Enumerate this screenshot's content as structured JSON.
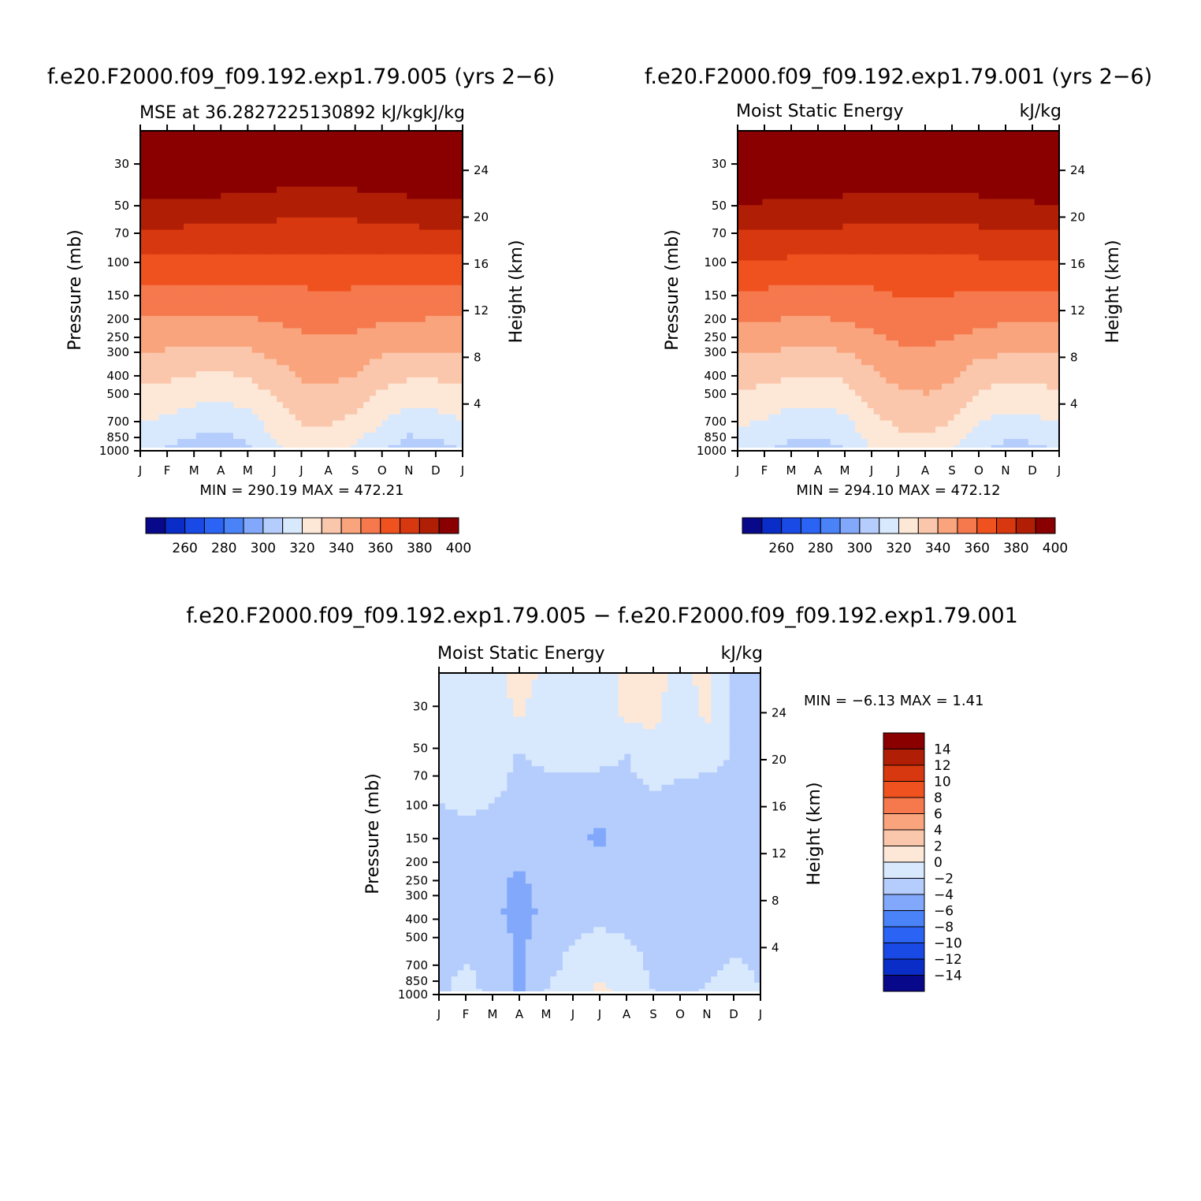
{
  "chart_data": [
    {
      "type": "contour",
      "title": "f.e20.F2000.f09_f09.192.exp1.79.005 (yrs 2−6)",
      "subtitle_left": "MSE at 36.2827225130892 kJ/kg",
      "subtitle_right": "kJ/kg",
      "xlabel": "",
      "ylabel": "Pressure (mb)",
      "ylabel_right": "Height (km)",
      "stats": "MIN = 290.19 MAX = 472.21",
      "months": [
        "J",
        "F",
        "M",
        "A",
        "M",
        "J",
        "J",
        "A",
        "S",
        "O",
        "N",
        "D",
        "J"
      ],
      "pressure_ticks": [
        30,
        50,
        70,
        100,
        150,
        200,
        250,
        300,
        400,
        500,
        700,
        850,
        1000
      ],
      "height_ticks": [
        24,
        20,
        16,
        12,
        8,
        4
      ],
      "colorbar_labels": [
        260,
        280,
        300,
        320,
        340,
        360,
        380,
        400
      ],
      "cmap": [
        "#08088a",
        "#0a2dc8",
        "#1a4ae6",
        "#2b64f5",
        "#4a82f8",
        "#82a8fb",
        "#b5cdfc",
        "#d8e8fd",
        "#fde8d8",
        "#fbc7ac",
        "#f9a47d",
        "#f6794e",
        "#f0521f",
        "#d8380f",
        "#b01f05",
        "#8a0000"
      ],
      "field": [
        [
          312,
          309,
          305,
          303,
          307,
          318,
          323,
          324,
          318,
          311,
          304,
          306,
          310
        ],
        [
          324,
          321,
          318,
          317,
          319,
          327,
          333,
          334,
          331,
          323,
          319,
          320,
          323
        ],
        [
          334,
          333,
          331,
          330,
          332,
          337,
          342,
          343,
          341,
          335,
          333,
          333,
          334
        ],
        [
          346,
          346,
          345,
          345,
          346,
          348,
          350,
          351,
          350,
          348,
          347,
          346,
          346
        ],
        [
          358,
          358,
          357,
          357,
          357,
          358,
          359,
          360,
          359,
          358,
          358,
          358,
          358
        ],
        [
          372,
          372,
          371,
          371,
          371,
          370,
          370,
          370,
          370,
          371,
          371,
          372,
          372
        ],
        [
          386,
          386,
          385,
          385,
          384,
          383,
          382,
          382,
          383,
          384,
          385,
          386,
          386
        ],
        [
          400,
          399,
          398,
          398,
          397,
          396,
          395,
          395,
          396,
          397,
          398,
          399,
          400
        ],
        [
          430,
          430,
          430,
          430,
          430,
          430,
          430,
          430,
          430,
          430,
          430,
          430,
          430
        ]
      ]
    },
    {
      "type": "contour",
      "title": "f.e20.F2000.f09_f09.192.exp1.79.001 (yrs 2−6)",
      "subtitle_left": "Moist Static Energy",
      "subtitle_right": "kJ/kg",
      "xlabel": "",
      "ylabel": "Pressure (mb)",
      "ylabel_right": "Height (km)",
      "stats": "MIN = 294.10 MAX = 472.12",
      "months": [
        "J",
        "F",
        "M",
        "A",
        "M",
        "J",
        "J",
        "A",
        "S",
        "O",
        "N",
        "D",
        "J"
      ],
      "pressure_ticks": [
        30,
        50,
        70,
        100,
        150,
        200,
        250,
        300,
        400,
        500,
        700,
        850,
        1000
      ],
      "height_ticks": [
        24,
        20,
        16,
        12,
        8,
        4
      ],
      "colorbar_labels": [
        260,
        280,
        300,
        320,
        340,
        360,
        380,
        400
      ],
      "cmap": [
        "#08088a",
        "#0a2dc8",
        "#1a4ae6",
        "#2b64f5",
        "#4a82f8",
        "#82a8fb",
        "#b5cdfc",
        "#d8e8fd",
        "#fde8d8",
        "#fbc7ac",
        "#f9a47d",
        "#f6794e",
        "#f0521f",
        "#d8380f",
        "#b01f05",
        "#8a0000"
      ],
      "field": [
        [
          313,
          310,
          307,
          305,
          309,
          320,
          325,
          326,
          320,
          312,
          306,
          307,
          311
        ],
        [
          325,
          322,
          319,
          318,
          321,
          329,
          335,
          336,
          333,
          324,
          320,
          321,
          324
        ],
        [
          335,
          334,
          332,
          331,
          333,
          339,
          344,
          345,
          342,
          336,
          334,
          334,
          335
        ],
        [
          347,
          347,
          346,
          346,
          347,
          350,
          353,
          353,
          352,
          349,
          348,
          347,
          347
        ],
        [
          359,
          359,
          358,
          358,
          358,
          359,
          361,
          362,
          361,
          359,
          359,
          359,
          359
        ],
        [
          373,
          373,
          372,
          372,
          372,
          371,
          370,
          370,
          371,
          372,
          372,
          373,
          373
        ],
        [
          387,
          387,
          386,
          386,
          385,
          384,
          383,
          383,
          384,
          385,
          386,
          387,
          387
        ],
        [
          401,
          400,
          399,
          399,
          398,
          397,
          396,
          396,
          397,
          398,
          399,
          400,
          401
        ],
        [
          430,
          430,
          430,
          430,
          430,
          430,
          430,
          430,
          430,
          430,
          430,
          430,
          430
        ]
      ]
    },
    {
      "type": "contour",
      "title": "f.e20.F2000.f09_f09.192.exp1.79.005 − f.e20.F2000.f09_f09.192.exp1.79.001",
      "subtitle_left": "Moist Static Energy",
      "subtitle_right": "kJ/kg",
      "xlabel": "",
      "ylabel": "Pressure (mb)",
      "ylabel_right": "Height (km)",
      "stats": "MIN =   −6.13 MAX =    1.41",
      "months": [
        "J",
        "F",
        "M",
        "A",
        "M",
        "J",
        "J",
        "A",
        "S",
        "O",
        "N",
        "D",
        "J"
      ],
      "pressure_ticks": [
        30,
        50,
        70,
        100,
        150,
        200,
        250,
        300,
        400,
        500,
        700,
        850,
        1000
      ],
      "height_ticks": [
        24,
        20,
        16,
        12,
        8,
        4
      ],
      "colorbar_labels": [
        "14",
        "12",
        "10",
        "8",
        "6",
        "4",
        "2",
        "0",
        "−2",
        "−4",
        "−6",
        "−8",
        "−10",
        "−12",
        "−14"
      ],
      "cmap": [
        "#08088a",
        "#0a2dc8",
        "#1a4ae6",
        "#2b64f5",
        "#4a82f8",
        "#82a8fb",
        "#b5cdfc",
        "#d8e8fd",
        "#fde8d8",
        "#fbc7ac",
        "#f9a47d",
        "#f6794e",
        "#f0521f",
        "#d8380f",
        "#b01f05",
        "#8a0000"
      ],
      "field": [
        [
          -2.4,
          -1.2,
          -2.6,
          -4.4,
          -1.8,
          -1.0,
          0.6,
          -0.8,
          -2.0,
          -3.2,
          -1.6,
          -1.2,
          -2.0
        ],
        [
          -2.6,
          -2.2,
          -2.8,
          -4.2,
          -3.0,
          -1.6,
          -0.8,
          -1.4,
          -2.6,
          -3.0,
          -2.8,
          -2.0,
          -2.2
        ],
        [
          -3.0,
          -2.8,
          -3.6,
          -4.6,
          -3.6,
          -2.8,
          -2.6,
          -2.8,
          -3.4,
          -3.4,
          -3.2,
          -2.6,
          -2.4
        ],
        [
          -3.2,
          -3.0,
          -3.6,
          -4.2,
          -3.4,
          -3.4,
          -3.6,
          -3.6,
          -3.2,
          -3.4,
          -3.4,
          -2.8,
          -2.6
        ],
        [
          -2.8,
          -2.4,
          -2.6,
          -3.0,
          -3.0,
          -3.8,
          -4.2,
          -3.6,
          -3.0,
          -3.2,
          -3.0,
          -2.6,
          -2.2
        ],
        [
          -1.8,
          -1.4,
          -1.8,
          -2.4,
          -2.8,
          -3.0,
          -2.6,
          -2.4,
          -2.0,
          -2.6,
          -2.8,
          -2.6,
          -2.2
        ],
        [
          -1.6,
          -0.9,
          -1.0,
          -2.2,
          -1.4,
          -1.2,
          -1.6,
          -2.0,
          -1.2,
          -1.0,
          -1.2,
          -2.2,
          -2.6
        ],
        [
          -1.9,
          -1.6,
          -1.4,
          0.4,
          -1.4,
          -1.2,
          -1.6,
          0.6,
          0.8,
          -1.6,
          0.6,
          -2.4,
          -2.8
        ],
        [
          -1.9,
          -1.5,
          -0.6,
          0.9,
          -0.5,
          -1.0,
          -1.5,
          0.9,
          0.9,
          -0.7,
          0.8,
          -2.6,
          -3.0
        ]
      ]
    }
  ]
}
